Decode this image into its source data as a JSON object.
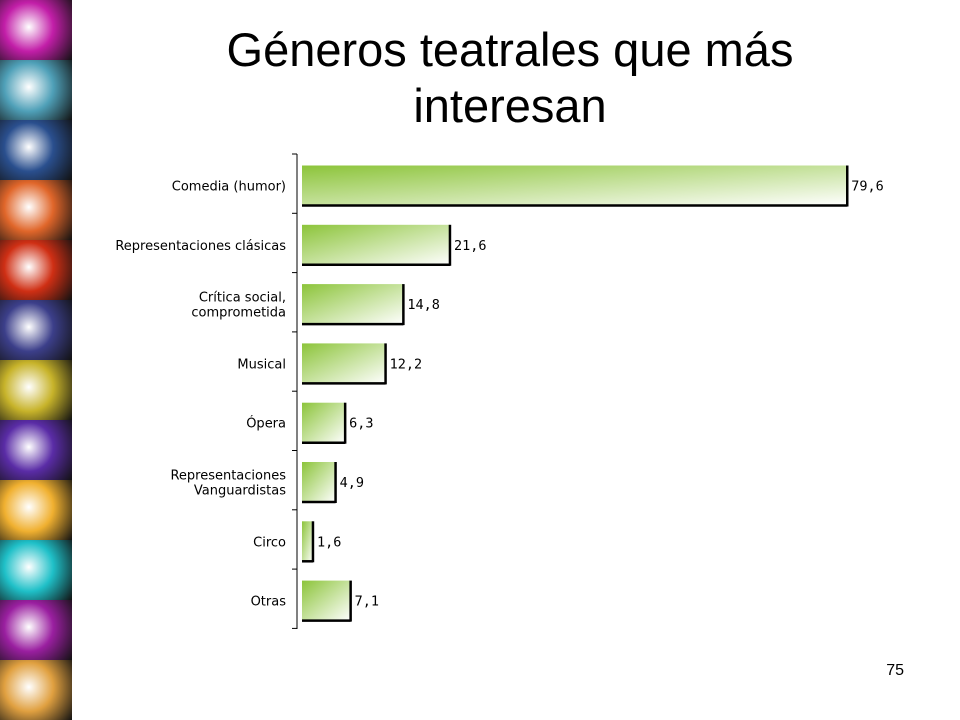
{
  "slide": {
    "title": "Géneros teatrales que más interesan",
    "page_number": "75"
  },
  "decor": {
    "strip_colors": [
      "#c21ea8",
      "#4fa0b8",
      "#2a4f8e",
      "#e0662a",
      "#cf2f14",
      "#3c3f8a",
      "#c7b32a",
      "#5a2ca6",
      "#f0b030",
      "#1fc0c8",
      "#9a1fa0",
      "#e0a040"
    ]
  },
  "chart_data": {
    "type": "bar",
    "orientation": "horizontal",
    "categories": [
      "Comedia (humor)",
      "Representaciones clásicas",
      "Crítica social,\ncomprometida",
      "Musical",
      "Ópera",
      "Representaciones\nVanguardistas",
      "Circo",
      "Otras"
    ],
    "values": [
      79.6,
      21.6,
      14.8,
      12.2,
      6.3,
      4.9,
      1.6,
      7.1
    ],
    "value_labels": [
      "79,6",
      "21,6",
      "14,8",
      "12,2",
      "6,3",
      "4,9",
      "1,6",
      "7,1"
    ],
    "xlim": [
      0,
      80
    ],
    "grid": false,
    "legend": "none",
    "colors": {
      "bar_start": "#8cc43a",
      "bar_end": "#ffffff",
      "bar_shadow": "#000000"
    }
  }
}
